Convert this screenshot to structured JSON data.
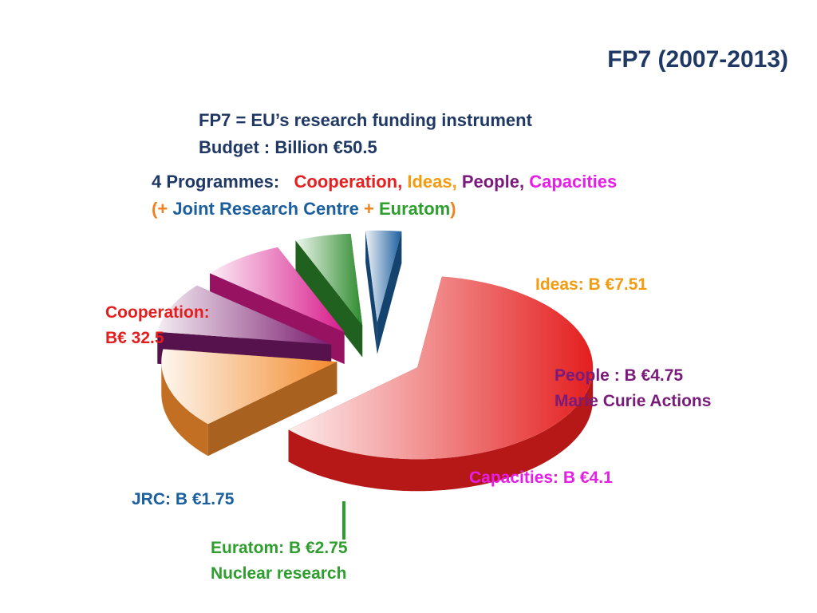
{
  "title": "FP7 (2007-2013)",
  "intro": {
    "line1": "FP7 = EU’s research funding instrument",
    "line2": "Budget : Billion €50.5"
  },
  "programmes": {
    "label": "4 Programmes:",
    "items": [
      {
        "text": "Cooperation",
        "sep": ", ",
        "color": "#e52020"
      },
      {
        "text": "Ideas",
        "sep": ", ",
        "color": "#f39c12"
      },
      {
        "text": "People",
        "sep": ", ",
        "color": "#7a1a7a"
      },
      {
        "text": "Capacities",
        "sep": "",
        "color": "#e61ee6"
      }
    ],
    "extra_open": "(",
    "plus": "+",
    "jrc": "Joint Research Centre",
    "euratom": "Euratom",
    "extra_close": ")"
  },
  "colors": {
    "navy": "#1f3864",
    "orange": "#f0821e",
    "jrc_blue": "#1c5f9e",
    "euratom_green": "#2e9e2e"
  },
  "chart_data": {
    "type": "pie",
    "title": "",
    "total": 50.5,
    "unit": "B €",
    "slices": [
      {
        "name": "Cooperation",
        "value": 32.5,
        "label": [
          "Cooperation:",
          " B€ 32.5"
        ],
        "color": "#e41e1e"
      },
      {
        "name": "Ideas",
        "value": 7.51,
        "label": [
          "Ideas:  B €7.51"
        ],
        "color": "#f28a2c"
      },
      {
        "name": "People",
        "value": 4.75,
        "label": [
          "People : B €4.75",
          "Marie Curie Actions"
        ],
        "color": "#7a1a6e"
      },
      {
        "name": "Capacities",
        "value": 4.1,
        "label": [
          "Capacities: B €4.1"
        ],
        "color": "#d81b8c"
      },
      {
        "name": "Euratom",
        "value": 2.75,
        "label": [
          "Euratom: B €2.75",
          "Nuclear research"
        ],
        "color": "#2e8b2e"
      },
      {
        "name": "JRC",
        "value": 1.75,
        "label": [
          "JRC: B €1.75"
        ],
        "color": "#1c5f9e"
      }
    ]
  }
}
